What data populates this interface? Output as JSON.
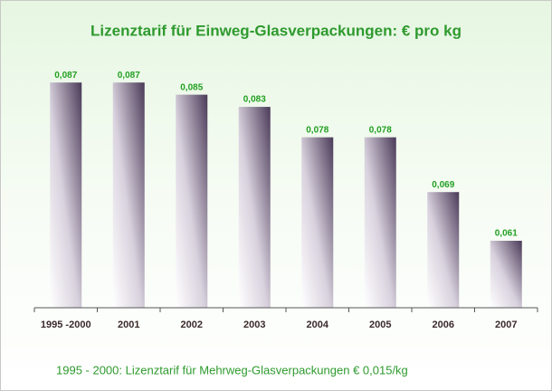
{
  "chart_data": {
    "type": "bar",
    "title": "Lizenztarif für Einweg-Glasverpackungen: € pro kg",
    "categories": [
      "1995 -2000",
      "2001",
      "2002",
      "2003",
      "2004",
      "2005",
      "2006",
      "2007"
    ],
    "values": [
      0.087,
      0.087,
      0.085,
      0.083,
      0.078,
      0.078,
      0.069,
      0.061
    ],
    "value_labels": [
      "0,087",
      "0,087",
      "0,085",
      "0,083",
      "0,078",
      "0,078",
      "0,069",
      "0,061"
    ],
    "color": "#4a3a58",
    "ylim": [
      0.05,
      0.09
    ],
    "note": "1995 - 2000:  Lizenztarif für Mehrweg-Glasverpackungen € 0,015/kg"
  }
}
